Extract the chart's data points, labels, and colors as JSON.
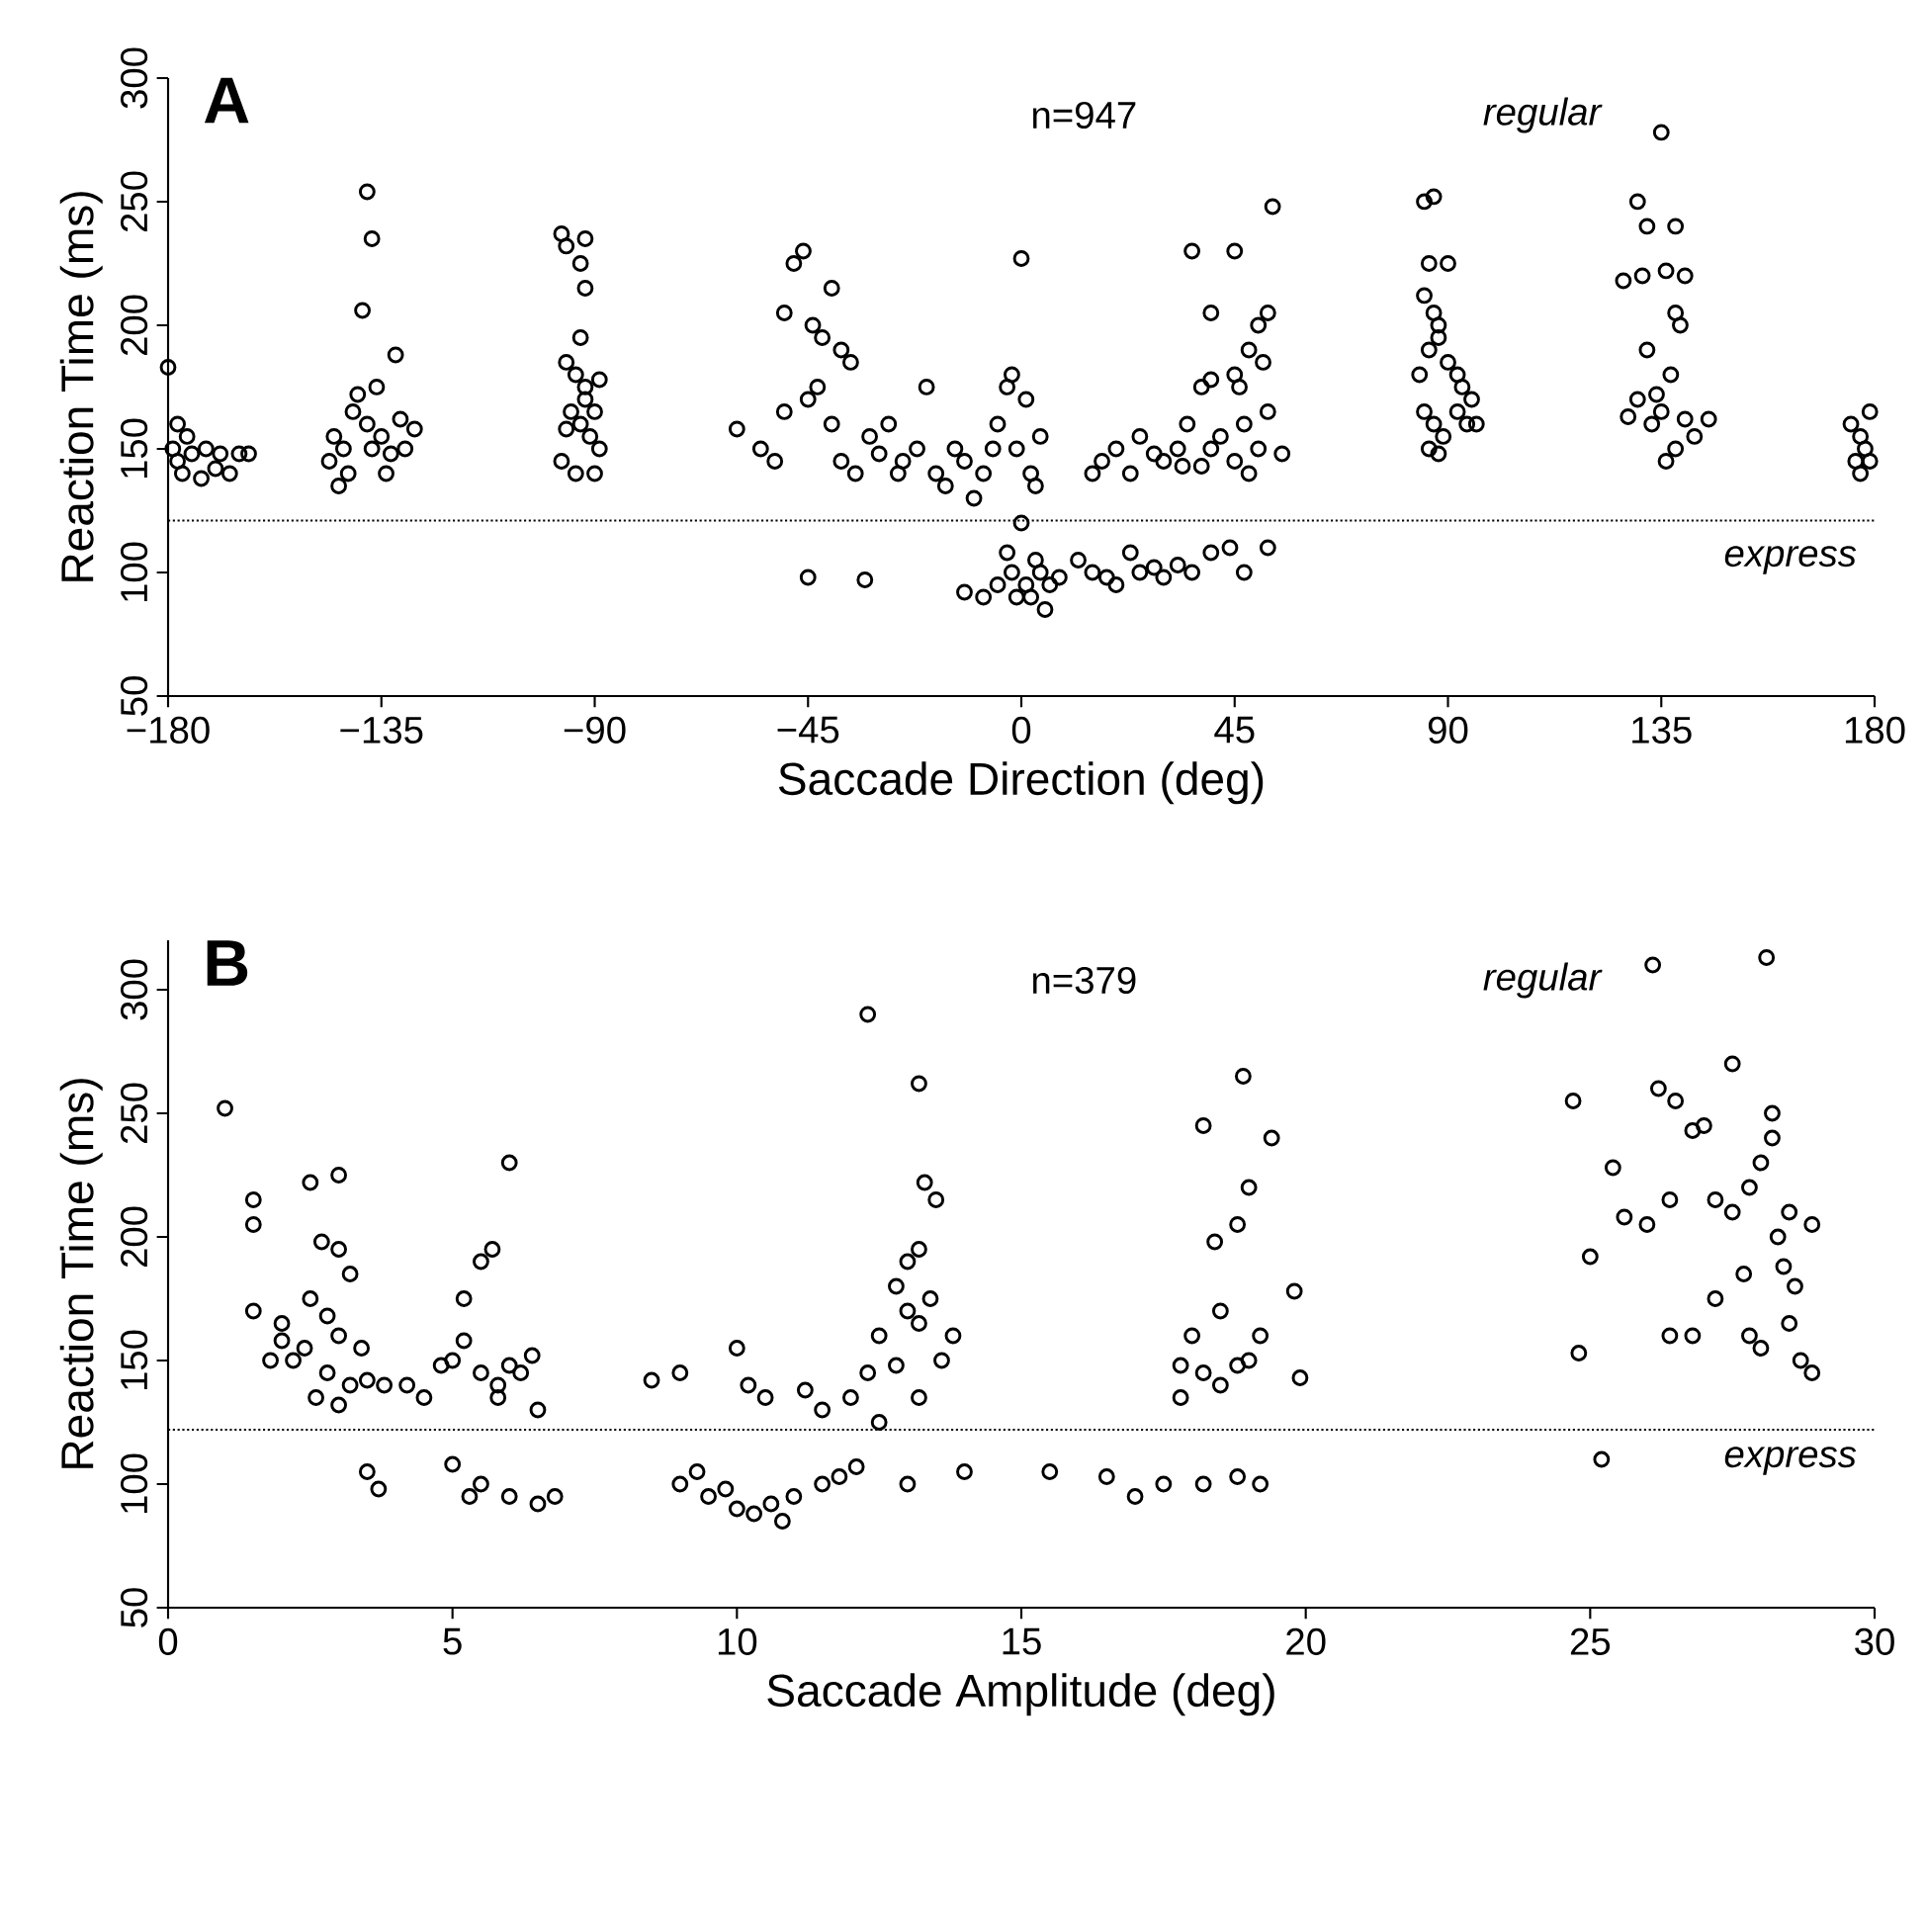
{
  "chart_data": [
    {
      "type": "scatter",
      "title": "A",
      "xlabel": "Saccade Direction (deg)",
      "ylabel": "Reaction Time (ms)",
      "xlim": [
        -180,
        180
      ],
      "ylim": [
        50,
        300
      ],
      "xticks": [
        {
          "value": -180,
          "label": "−180"
        },
        {
          "value": -135,
          "label": "−135"
        },
        {
          "value": -90,
          "label": "−90"
        },
        {
          "value": -45,
          "label": "−45"
        },
        0,
        45,
        90,
        135,
        180
      ],
      "yticks": [
        50,
        100,
        150,
        200,
        250,
        300
      ],
      "marker": "circle",
      "grid": false,
      "ref_lines": [
        {
          "axis": "y",
          "value": 121,
          "line_style": "dotted",
          "color": "#000000"
        }
      ],
      "annotations": [
        "n=947",
        "regular",
        "express"
      ],
      "series": [
        {
          "color": "#000000",
          "x": [
            -180,
            -179,
            -178,
            -177,
            -176,
            -175,
            -173,
            -172,
            -170,
            -169,
            -167,
            -165,
            -163,
            -178,
            -146,
            -145,
            -143,
            -141,
            -140,
            -138,
            -137,
            -135,
            -134,
            -133,
            -131,
            -130,
            -128,
            -132,
            -139,
            -137,
            -138,
            -136,
            -144,
            -142,
            -97,
            -96,
            -92,
            -93,
            -92,
            -93,
            -96,
            -94,
            -92,
            -95,
            -93,
            -91,
            -97,
            -94,
            -90,
            -89,
            -92,
            -89,
            -90,
            -96,
            -60,
            -55,
            -52,
            -50,
            -50,
            -48,
            -46,
            -44,
            -42,
            -40,
            -38,
            -36,
            -45,
            -43,
            -40,
            -38,
            -35,
            -32,
            -30,
            -28,
            -25,
            -22,
            -20,
            -18,
            -16,
            -14,
            -10,
            -8,
            -5,
            -3,
            -2,
            0,
            1,
            -1,
            2,
            3,
            4,
            -6,
            -12,
            -26,
            -45,
            -33,
            -12,
            -8,
            -5,
            -3,
            -2,
            0,
            1,
            2,
            4,
            5,
            6,
            8,
            3,
            -1,
            12,
            15,
            18,
            20,
            23,
            25,
            28,
            30,
            33,
            36,
            40,
            44,
            47,
            52,
            15,
            17,
            20,
            23,
            25,
            28,
            30,
            33,
            35,
            38,
            40,
            42,
            45,
            47,
            50,
            52,
            55,
            45,
            48,
            50,
            52,
            51,
            46,
            40,
            45,
            53,
            36,
            38,
            40,
            34,
            48,
            85,
            87,
            86,
            90,
            85,
            87,
            88,
            86,
            88,
            90,
            92,
            85,
            87,
            89,
            92,
            95,
            94,
            86,
            88,
            96,
            93,
            84,
            130,
            132,
            135,
            138,
            127,
            131,
            136,
            140,
            138,
            139,
            132,
            137,
            128,
            133,
            135,
            140,
            142,
            130,
            138,
            136,
            145,
            134,
            175,
            177,
            178,
            176,
            179,
            177,
            179
          ],
          "values": [
            183,
            150,
            145,
            140,
            155,
            148,
            138,
            150,
            142,
            148,
            140,
            148,
            148,
            160,
            145,
            155,
            150,
            165,
            172,
            160,
            150,
            155,
            140,
            148,
            162,
            150,
            158,
            188,
            206,
            235,
            254,
            175,
            135,
            140,
            237,
            232,
            235,
            225,
            215,
            195,
            185,
            180,
            170,
            165,
            160,
            155,
            145,
            140,
            140,
            150,
            175,
            178,
            165,
            158,
            158,
            150,
            145,
            165,
            205,
            225,
            230,
            200,
            195,
            215,
            190,
            185,
            170,
            175,
            160,
            145,
            140,
            155,
            148,
            160,
            145,
            150,
            175,
            140,
            135,
            150,
            130,
            140,
            160,
            175,
            180,
            227,
            170,
            150,
            140,
            135,
            155,
            150,
            145,
            140,
            98,
            97,
            92,
            90,
            95,
            108,
            100,
            120,
            95,
            90,
            100,
            85,
            95,
            98,
            105,
            90,
            105,
            100,
            98,
            95,
            108,
            100,
            102,
            98,
            103,
            100,
            108,
            110,
            100,
            110,
            140,
            145,
            150,
            140,
            155,
            148,
            145,
            150,
            160,
            143,
            150,
            155,
            145,
            160,
            150,
            165,
            148,
            180,
            190,
            200,
            205,
            185,
            175,
            205,
            230,
            248,
            230,
            175,
            178,
            143,
            140,
            250,
            252,
            225,
            225,
            212,
            205,
            200,
            190,
            195,
            185,
            180,
            165,
            160,
            155,
            165,
            170,
            160,
            150,
            148,
            160,
            175,
            180,
            250,
            240,
            278,
            240,
            218,
            220,
            222,
            220,
            205,
            200,
            190,
            180,
            163,
            160,
            165,
            162,
            155,
            170,
            150,
            145,
            162,
            172,
            160,
            155,
            150,
            145,
            145,
            140,
            165
          ]
        }
      ]
    },
    {
      "type": "scatter",
      "title": "B",
      "xlabel": "Saccade Amplitude (deg)",
      "ylabel": "Reaction Time (ms)",
      "xlim": [
        0,
        30
      ],
      "ylim": [
        50,
        320
      ],
      "xticks": [
        0,
        5,
        10,
        15,
        20,
        25,
        30
      ],
      "yticks": [
        50,
        100,
        150,
        200,
        250,
        300
      ],
      "marker": "circle",
      "grid": false,
      "ref_lines": [
        {
          "axis": "y",
          "value": 122,
          "line_style": "dotted",
          "color": "#000000"
        }
      ],
      "annotations": [
        "n=379",
        "regular",
        "express"
      ],
      "series": [
        {
          "color": "#000000",
          "x": [
            1,
            1.5,
            1.5,
            1.5,
            2,
            2.5,
            3,
            2.7,
            3,
            3.2,
            2.5,
            2.8,
            3,
            2.4,
            1.8,
            2,
            2.8,
            3.2,
            3.5,
            2.6,
            3,
            3.8,
            2.2,
            3.4,
            3.5,
            3.7,
            4.2,
            4.5,
            5,
            5.2,
            5.5,
            5.7,
            5.2,
            5.5,
            5.8,
            6,
            6.2,
            6.4,
            5.8,
            6.5,
            6,
            5,
            5.5,
            6,
            6.5,
            6.8,
            5.3,
            4.8,
            8.5,
            9,
            10,
            10.2,
            10.5,
            11.2,
            11.5,
            9,
            9.5,
            10,
            10.3,
            10.6,
            11,
            11.5,
            9.8,
            10.8,
            11.8,
            12.1,
            9.3,
            12,
            12.3,
            13.2,
            13.3,
            13.5,
            13.2,
            13,
            12.8,
            13,
            12.5,
            13.4,
            13.2,
            13.6,
            12.8,
            12.3,
            13.8,
            13.2,
            12.5,
            14,
            13,
            15.5,
            16.5,
            17,
            17.5,
            18.2,
            18.8,
            19.2,
            17.8,
            17.8,
            18,
            18.2,
            18.5,
            18.8,
            19,
            19.2,
            18.5,
            18.4,
            18.8,
            18.2,
            18.9,
            19,
            19.4,
            19.8,
            19.9,
            24.7,
            25,
            24.8,
            25.2,
            25.4,
            25.6,
            26,
            26.2,
            26.5,
            26.1,
            26.8,
            27,
            26.4,
            26.8,
            27.2,
            27.5,
            27.8,
            28,
            28.1,
            28.2,
            28.2,
            27.5,
            28.3,
            28.5,
            28.6,
            28.7,
            28.5,
            28.9,
            27.7,
            26.4,
            27.2,
            28.4,
            28.9,
            28,
            27.8
          ],
          "values": [
            252,
            215,
            205,
            170,
            165,
            222,
            225,
            198,
            195,
            185,
            175,
            168,
            160,
            155,
            150,
            158,
            145,
            140,
            142,
            135,
            132,
            140,
            150,
            155,
            105,
            98,
            140,
            135,
            150,
            175,
            190,
            195,
            158,
            145,
            140,
            148,
            145,
            152,
            135,
            130,
            230,
            108,
            100,
            95,
            92,
            95,
            95,
            148,
            142,
            145,
            155,
            140,
            135,
            138,
            130,
            100,
            95,
            90,
            88,
            92,
            95,
            100,
            98,
            85,
            103,
            107,
            105,
            135,
            290,
            262,
            222,
            215,
            195,
            190,
            180,
            170,
            160,
            175,
            165,
            150,
            148,
            145,
            160,
            135,
            125,
            105,
            100,
            105,
            103,
            95,
            100,
            100,
            103,
            100,
            135,
            148,
            160,
            145,
            140,
            148,
            150,
            160,
            170,
            198,
            205,
            245,
            265,
            220,
            240,
            178,
            143,
            255,
            192,
            153,
            110,
            228,
            208,
            205,
            260,
            255,
            310,
            243,
            245,
            160,
            160,
            175,
            210,
            220,
            230,
            313,
            250,
            240,
            270,
            200,
            210,
            180,
            150,
            165,
            145,
            185,
            215,
            215,
            188,
            205,
            155,
            160
          ]
        }
      ]
    }
  ]
}
